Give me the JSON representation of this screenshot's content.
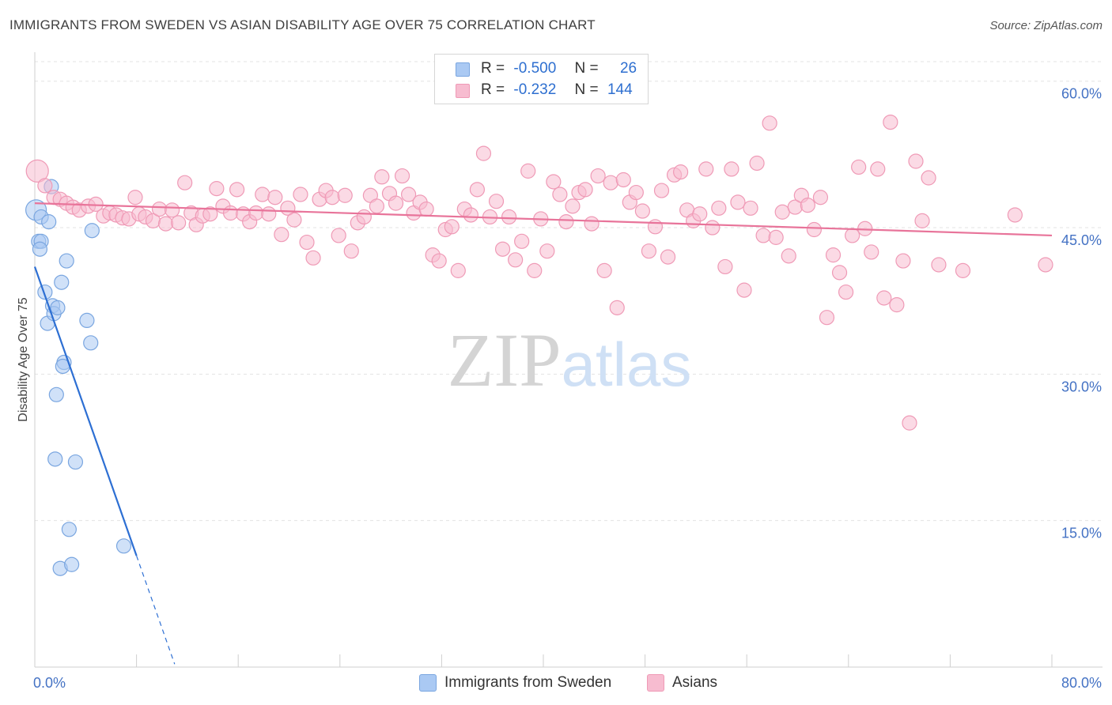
{
  "chart_data": {
    "type": "scatter",
    "title": "IMMIGRANTS FROM SWEDEN VS ASIAN DISABILITY AGE OVER 75 CORRELATION CHART",
    "source": "Source: ZipAtlas.com",
    "watermark": "ZIPatlas",
    "xlabel": "",
    "ylabel": "Disability Age Over 75",
    "xlim": [
      0,
      80
    ],
    "ylim": [
      0,
      62
    ],
    "x_tick_labels": [
      "0.0%",
      "80.0%"
    ],
    "y_ticks": [
      {
        "value": 15,
        "label": "15.0%"
      },
      {
        "value": 30,
        "label": "30.0%"
      },
      {
        "value": 45,
        "label": "45.0%"
      },
      {
        "value": 60,
        "label": "60.0%"
      }
    ],
    "legend": {
      "rows": [
        {
          "r_label": "R =",
          "r_value": "-0.500",
          "n_label": "N =",
          "n_value": "26",
          "color": "#aac9f3"
        },
        {
          "r_label": "R =",
          "r_value": "-0.232",
          "n_label": "N =",
          "n_value": "144",
          "color": "#f7bcd0"
        }
      ]
    },
    "series": [
      {
        "name": "Immigrants from Sweden",
        "color": "#aac9f3",
        "stroke": "#7aa6e0",
        "line_color": "#2d6fd3",
        "trend": {
          "x0": 0.0,
          "y0": 41.0,
          "x1": 8.0,
          "y1": 11.4,
          "dash_to_x": 11.0,
          "dash_to_y": 0.3
        },
        "points": [
          [
            0.1,
            46.8
          ],
          [
            0.5,
            46.1
          ],
          [
            0.3,
            43.6
          ],
          [
            0.5,
            43.6
          ],
          [
            0.4,
            42.8
          ],
          [
            1.1,
            45.6
          ],
          [
            1.3,
            49.2
          ],
          [
            1.0,
            35.2
          ],
          [
            0.8,
            38.4
          ],
          [
            1.4,
            37.0
          ],
          [
            1.5,
            36.2
          ],
          [
            1.8,
            36.8
          ],
          [
            2.1,
            39.4
          ],
          [
            2.5,
            41.6
          ],
          [
            2.3,
            31.2
          ],
          [
            2.2,
            30.8
          ],
          [
            1.7,
            27.9
          ],
          [
            1.6,
            21.3
          ],
          [
            3.2,
            21.0
          ],
          [
            2.7,
            14.1
          ],
          [
            2.0,
            10.1
          ],
          [
            2.9,
            10.5
          ],
          [
            7.0,
            12.4
          ],
          [
            4.5,
            44.7
          ],
          [
            4.1,
            35.5
          ],
          [
            4.4,
            33.2
          ]
        ]
      },
      {
        "name": "Asians",
        "color": "#f7bcd0",
        "stroke": "#ef9ab6",
        "line_color": "#e8749a",
        "trend": {
          "x0": 0.0,
          "y0": 47.5,
          "x1": 80.0,
          "y1": 44.2
        },
        "points": [
          [
            0.2,
            50.8
          ],
          [
            0.8,
            49.3
          ],
          [
            1.5,
            48.1
          ],
          [
            2.0,
            47.9
          ],
          [
            2.5,
            47.5
          ],
          [
            3.0,
            47.1
          ],
          [
            3.5,
            46.8
          ],
          [
            4.2,
            47.2
          ],
          [
            4.8,
            47.4
          ],
          [
            5.4,
            46.2
          ],
          [
            5.9,
            46.5
          ],
          [
            6.4,
            46.3
          ],
          [
            6.9,
            46.0
          ],
          [
            7.4,
            45.9
          ],
          [
            7.9,
            48.1
          ],
          [
            8.2,
            46.4
          ],
          [
            8.7,
            46.1
          ],
          [
            9.3,
            45.7
          ],
          [
            9.8,
            46.9
          ],
          [
            10.3,
            45.4
          ],
          [
            10.8,
            46.8
          ],
          [
            11.3,
            45.5
          ],
          [
            11.8,
            49.6
          ],
          [
            12.3,
            46.5
          ],
          [
            12.7,
            45.3
          ],
          [
            13.2,
            46.2
          ],
          [
            13.8,
            46.4
          ],
          [
            14.3,
            49.0
          ],
          [
            14.8,
            47.2
          ],
          [
            15.4,
            46.5
          ],
          [
            15.9,
            48.9
          ],
          [
            16.4,
            46.4
          ],
          [
            16.9,
            45.6
          ],
          [
            17.4,
            46.5
          ],
          [
            17.9,
            48.4
          ],
          [
            18.4,
            46.4
          ],
          [
            18.9,
            48.1
          ],
          [
            19.4,
            44.3
          ],
          [
            19.9,
            47.0
          ],
          [
            20.4,
            45.8
          ],
          [
            20.9,
            48.4
          ],
          [
            21.4,
            43.5
          ],
          [
            21.9,
            41.9
          ],
          [
            22.4,
            47.9
          ],
          [
            22.9,
            48.8
          ],
          [
            23.4,
            48.1
          ],
          [
            23.9,
            44.2
          ],
          [
            24.4,
            48.3
          ],
          [
            24.9,
            42.6
          ],
          [
            25.4,
            45.5
          ],
          [
            25.9,
            46.1
          ],
          [
            26.4,
            48.3
          ],
          [
            26.9,
            47.2
          ],
          [
            27.3,
            50.2
          ],
          [
            27.9,
            48.5
          ],
          [
            28.4,
            47.5
          ],
          [
            28.9,
            50.3
          ],
          [
            29.4,
            48.4
          ],
          [
            29.8,
            46.5
          ],
          [
            30.3,
            47.6
          ],
          [
            30.8,
            46.9
          ],
          [
            31.3,
            42.2
          ],
          [
            31.8,
            41.6
          ],
          [
            32.3,
            44.8
          ],
          [
            32.8,
            45.1
          ],
          [
            33.3,
            40.6
          ],
          [
            33.8,
            46.9
          ],
          [
            34.3,
            46.3
          ],
          [
            34.8,
            48.9
          ],
          [
            35.3,
            52.6
          ],
          [
            35.8,
            46.1
          ],
          [
            36.3,
            47.7
          ],
          [
            36.8,
            42.8
          ],
          [
            37.3,
            46.1
          ],
          [
            37.8,
            41.7
          ],
          [
            38.3,
            43.6
          ],
          [
            38.8,
            50.8
          ],
          [
            39.3,
            40.6
          ],
          [
            39.8,
            45.9
          ],
          [
            40.3,
            42.6
          ],
          [
            40.8,
            49.7
          ],
          [
            41.3,
            48.4
          ],
          [
            41.8,
            45.6
          ],
          [
            42.3,
            47.2
          ],
          [
            42.8,
            48.6
          ],
          [
            43.3,
            48.9
          ],
          [
            43.8,
            45.4
          ],
          [
            44.3,
            50.3
          ],
          [
            44.8,
            40.6
          ],
          [
            45.3,
            49.6
          ],
          [
            45.8,
            36.8
          ],
          [
            46.3,
            49.9
          ],
          [
            46.8,
            47.6
          ],
          [
            47.3,
            48.6
          ],
          [
            47.8,
            46.7
          ],
          [
            48.3,
            42.6
          ],
          [
            48.8,
            45.1
          ],
          [
            49.3,
            48.8
          ],
          [
            49.8,
            42.0
          ],
          [
            50.3,
            50.4
          ],
          [
            50.8,
            50.7
          ],
          [
            51.3,
            46.8
          ],
          [
            51.8,
            45.7
          ],
          [
            52.3,
            46.4
          ],
          [
            52.8,
            51.0
          ],
          [
            53.3,
            45.0
          ],
          [
            53.8,
            47.0
          ],
          [
            54.3,
            41.0
          ],
          [
            54.8,
            51.0
          ],
          [
            55.3,
            47.6
          ],
          [
            55.8,
            38.6
          ],
          [
            56.3,
            47.0
          ],
          [
            56.8,
            51.6
          ],
          [
            57.3,
            44.2
          ],
          [
            57.8,
            55.7
          ],
          [
            58.3,
            44.0
          ],
          [
            58.8,
            46.6
          ],
          [
            59.3,
            42.1
          ],
          [
            59.8,
            47.1
          ],
          [
            60.3,
            48.3
          ],
          [
            60.8,
            47.3
          ],
          [
            61.3,
            44.8
          ],
          [
            61.8,
            48.1
          ],
          [
            62.3,
            35.8
          ],
          [
            62.8,
            42.2
          ],
          [
            63.3,
            40.4
          ],
          [
            63.8,
            38.4
          ],
          [
            64.3,
            44.2
          ],
          [
            64.8,
            51.2
          ],
          [
            65.3,
            44.9
          ],
          [
            65.8,
            42.5
          ],
          [
            66.3,
            51.0
          ],
          [
            66.8,
            37.8
          ],
          [
            67.3,
            55.8
          ],
          [
            67.8,
            37.1
          ],
          [
            68.3,
            41.6
          ],
          [
            68.8,
            25.0
          ],
          [
            69.3,
            51.8
          ],
          [
            69.8,
            45.7
          ],
          [
            70.3,
            50.1
          ],
          [
            71.1,
            41.2
          ],
          [
            73.0,
            40.6
          ],
          [
            77.1,
            46.3
          ],
          [
            79.5,
            41.2
          ]
        ]
      }
    ]
  }
}
